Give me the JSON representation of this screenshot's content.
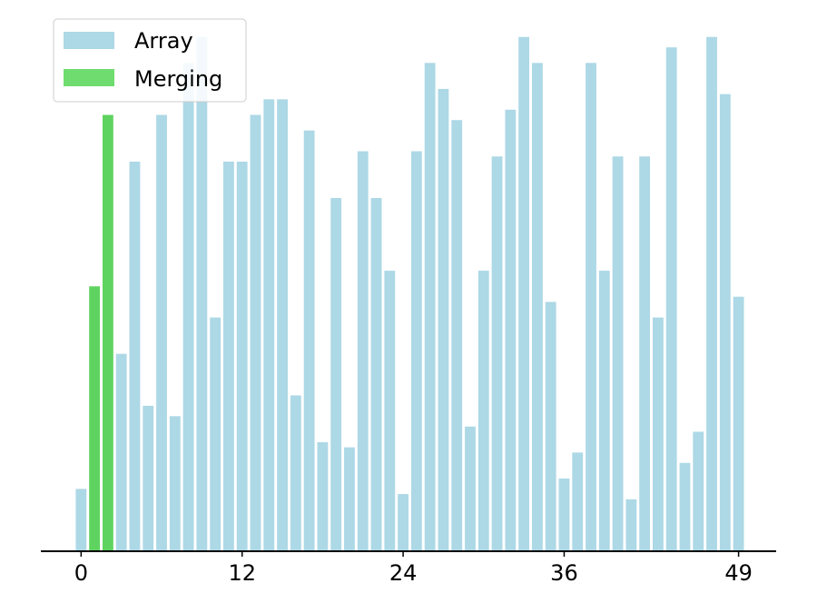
{
  "chart_data": {
    "type": "bar",
    "title": "",
    "xlabel": "",
    "ylabel": "",
    "x": [
      0,
      1,
      2,
      3,
      4,
      5,
      6,
      7,
      8,
      9,
      10,
      11,
      12,
      13,
      14,
      15,
      16,
      17,
      18,
      19,
      20,
      21,
      22,
      23,
      24,
      25,
      26,
      27,
      28,
      29,
      30,
      31,
      32,
      33,
      34,
      35,
      36,
      37,
      38,
      39,
      40,
      41,
      42,
      43,
      44,
      45,
      46,
      47,
      48,
      49
    ],
    "values": [
      12,
      51,
      84,
      38,
      75,
      28,
      84,
      26,
      94,
      99,
      45,
      75,
      75,
      84,
      87,
      87,
      30,
      81,
      21,
      68,
      20,
      77,
      68,
      54,
      11,
      77,
      94,
      89,
      83,
      24,
      54,
      76,
      85,
      99,
      94,
      48,
      14,
      19,
      94,
      54,
      76,
      10,
      76,
      45,
      97,
      17,
      23,
      99,
      88,
      49
    ],
    "highlight_indices": [
      1,
      2
    ],
    "ylim": [
      0,
      100
    ],
    "xlim": [
      -3,
      51.8
    ],
    "xticks": [
      0,
      12,
      24,
      36,
      49
    ],
    "grid": false,
    "legend": {
      "placement": "top-left",
      "entries": [
        {
          "label": "Array",
          "color": "#add8e6"
        },
        {
          "label": "Merging",
          "color": "#6edc6e"
        }
      ]
    },
    "colors": {
      "array": "#add8e6",
      "merging": "#5fd35f",
      "axis": "#000000"
    }
  }
}
